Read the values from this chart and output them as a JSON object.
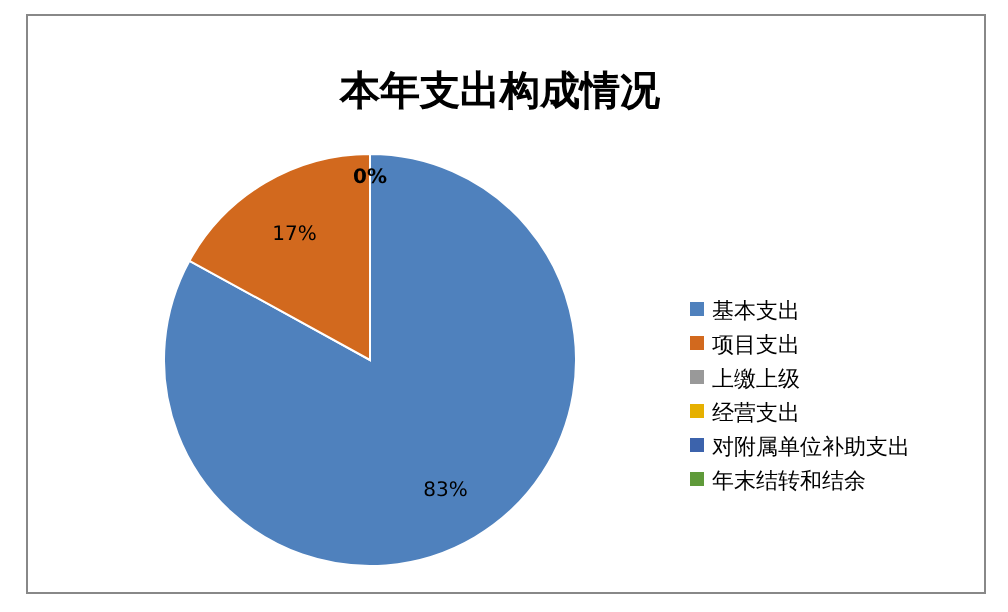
{
  "chart_data": {
    "type": "pie",
    "title": "本年支出构成情况",
    "categories": [
      "基本支出",
      "项目支出",
      "上缴上级",
      "经营支出",
      "对附属单位补助支出",
      "年末结转和结余"
    ],
    "values": [
      83,
      17,
      0,
      0,
      0,
      0
    ],
    "colors": [
      "#4f81bd",
      "#d2691e",
      "#999999",
      "#e6b000",
      "#3c63ac",
      "#5f9a3a"
    ],
    "value_labels": [
      "83%",
      "17%",
      "0%",
      null,
      null,
      null
    ],
    "legend": "right"
  }
}
